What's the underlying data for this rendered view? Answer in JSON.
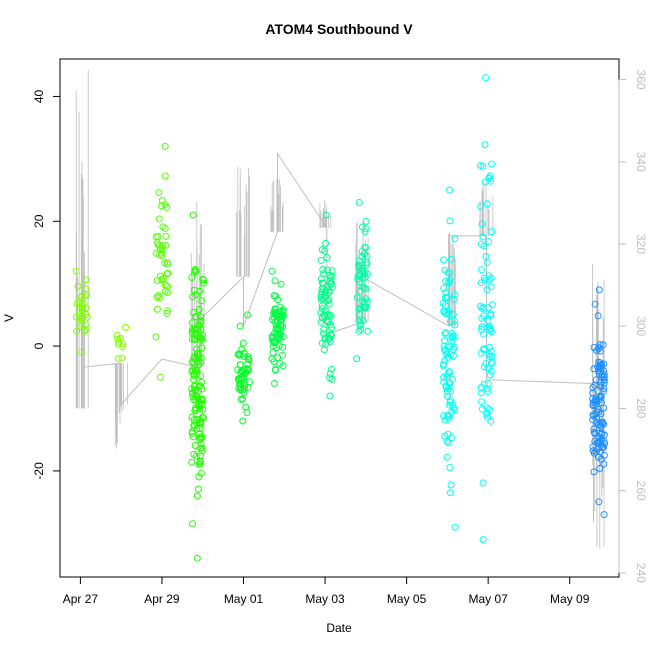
{
  "chart_data": {
    "type": "scatter",
    "title": "ATOM4 Southbound V",
    "xlabel": "Date",
    "ylabel": "V",
    "x_ticks": [
      {
        "date": "2018-04-27",
        "label": "Apr 27"
      },
      {
        "date": "2018-04-29",
        "label": "Apr 29"
      },
      {
        "date": "2018-05-01",
        "label": "May 01"
      },
      {
        "date": "2018-05-03",
        "label": "May 03"
      },
      {
        "date": "2018-05-05",
        "label": "May 05"
      },
      {
        "date": "2018-05-07",
        "label": "May 07"
      },
      {
        "date": "2018-05-09",
        "label": "May 09"
      }
    ],
    "xlim": [
      "2018-04-26T12:00",
      "2018-05-10T05:00"
    ],
    "ylim": [
      -37,
      46
    ],
    "y_ticks": [
      -20,
      0,
      20,
      40
    ],
    "secondary_y": {
      "label": "",
      "ylim": [
        239,
        365
      ],
      "ticks": [
        240,
        260,
        280,
        300,
        320,
        340,
        360
      ],
      "color": "#bebebe"
    },
    "grid": false,
    "legend": "none",
    "colors": {
      "start": "#7fff00",
      "mid": "#00ff7f",
      "cyan": "#00ffff",
      "end": "#1e90ff",
      "secondary_line": "#bebebe"
    },
    "marker": "open-circle",
    "clusters": [
      {
        "date": "2018-04-27T01:00",
        "y_min": -1,
        "y_max": 12,
        "n": 30,
        "color": "#7fff00"
      },
      {
        "date": "2018-04-28T00:00",
        "y_min": -2,
        "y_max": 3,
        "n": 10,
        "color": "#86ff00"
      },
      {
        "date": "2018-04-29T00:00",
        "y_min": -5,
        "y_max": 32,
        "n": 45,
        "color": "#55ff00"
      },
      {
        "date": "2018-04-29T21:00",
        "y_min": -34,
        "y_max": 21,
        "n": 140,
        "color": "#22ff00"
      },
      {
        "date": "2018-05-01T00:00",
        "y_min": -12,
        "y_max": 5,
        "n": 50,
        "color": "#00ff22"
      },
      {
        "date": "2018-05-01T20:00",
        "y_min": -6,
        "y_max": 12,
        "n": 70,
        "color": "#00ff44"
      },
      {
        "date": "2018-05-03T01:00",
        "y_min": -8,
        "y_max": 21,
        "n": 70,
        "color": "#00ff88"
      },
      {
        "date": "2018-05-03T22:00",
        "y_min": -2,
        "y_max": 23,
        "n": 55,
        "color": "#00ffaa"
      },
      {
        "date": "2018-05-06T01:00",
        "y_min": -29,
        "y_max": 25,
        "n": 90,
        "color": "#00ffee"
      },
      {
        "date": "2018-05-06T23:00",
        "y_min": -31,
        "y_max": 43,
        "n": 80,
        "color": "#00ffff"
      },
      {
        "date": "2018-05-09T17:00",
        "y_min": -27,
        "y_max": 9,
        "n": 110,
        "color": "#1e90ff"
      }
    ],
    "secondary_series": {
      "name": "",
      "color": "#bebebe",
      "points": [
        {
          "date": "2018-04-27T01:00",
          "v": 280
        },
        {
          "date": "2018-04-27T01:00",
          "v": 290
        },
        {
          "date": "2018-04-28T00:00",
          "v": 291
        },
        {
          "date": "2018-04-28T00:00",
          "v": 288
        },
        {
          "date": "2018-04-28T00:00",
          "v": 281
        },
        {
          "date": "2018-04-29T00:00",
          "v": 292
        },
        {
          "date": "2018-04-29T21:00",
          "v": 290
        },
        {
          "date": "2018-04-29T21:00",
          "v": 301
        },
        {
          "date": "2018-05-01T00:00",
          "v": 312
        },
        {
          "date": "2018-05-01T00:00",
          "v": 300
        },
        {
          "date": "2018-05-01T20:00",
          "v": 323
        },
        {
          "date": "2018-05-01T20:00",
          "v": 342
        },
        {
          "date": "2018-05-03T01:00",
          "v": 324
        },
        {
          "date": "2018-05-03T01:00",
          "v": 298
        },
        {
          "date": "2018-05-03T22:00",
          "v": 301
        },
        {
          "date": "2018-05-03T22:00",
          "v": 312
        },
        {
          "date": "2018-05-06T01:00",
          "v": 300
        },
        {
          "date": "2018-05-06T01:00",
          "v": 322
        },
        {
          "date": "2018-05-06T23:00",
          "v": 322
        },
        {
          "date": "2018-05-06T23:00",
          "v": 287
        },
        {
          "date": "2018-05-09T17:00",
          "v": 286
        }
      ],
      "spikes": [
        {
          "date": "2018-04-27T01:00",
          "v": 364
        },
        {
          "date": "2018-04-28T00:00",
          "v": 270
        },
        {
          "date": "2018-04-29T21:00",
          "v": 335
        },
        {
          "date": "2018-05-01T00:00",
          "v": 339
        },
        {
          "date": "2018-05-01T20:00",
          "v": 337
        },
        {
          "date": "2018-05-03T01:00",
          "v": 331
        },
        {
          "date": "2018-05-03T22:00",
          "v": 327
        },
        {
          "date": "2018-05-06T01:00",
          "v": 323
        },
        {
          "date": "2018-05-06T23:00",
          "v": 336
        },
        {
          "date": "2018-05-09T17:00",
          "v": 321
        },
        {
          "date": "2018-05-09T17:00",
          "v": 245
        }
      ]
    }
  }
}
